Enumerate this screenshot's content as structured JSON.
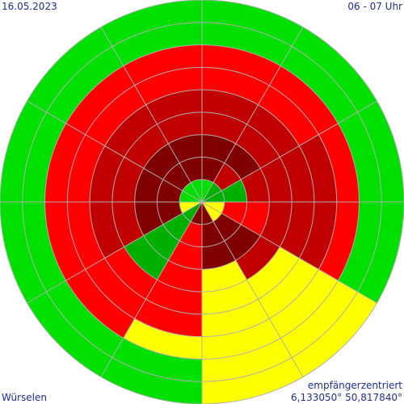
{
  "header": {
    "date": "16.05.2023",
    "time_range": "06 - 07 Uhr"
  },
  "footer": {
    "location": "Würselen",
    "projection": "empfängerzentriert",
    "coordinates": "6,133050° 50,817840°"
  },
  "colors": {
    "bright_green": "#00e000",
    "dark_green": "#00b000",
    "yellow": "#ffff00",
    "red": "#ff0000",
    "dark_red": "#c00000",
    "darkest_red": "#800000",
    "grid": "#b0b0b0"
  },
  "chart_data": {
    "type": "polar_sector_rings",
    "sectors": 12,
    "start_direction": "north",
    "rotation": "clockwise",
    "rings": 9,
    "grid": true,
    "color_keys": [
      "bright_green",
      "dark_green",
      "yellow",
      "red",
      "dark_red",
      "darkest_red"
    ],
    "sector_rings": [
      [
        "bright_green",
        "darkest_red",
        "darkest_red",
        "dark_red",
        "dark_red",
        "red",
        "red",
        "bright_green",
        "bright_green"
      ],
      [
        "dark_green",
        "dark_red",
        "darkest_red",
        "dark_red",
        "dark_red",
        "red",
        "red",
        "bright_green",
        "bright_green"
      ],
      [
        "dark_green",
        "dark_green",
        "dark_red",
        "dark_red",
        "dark_red",
        "dark_red",
        "red",
        "bright_green",
        "bright_green"
      ],
      [
        "yellow",
        "red",
        "red",
        "dark_red",
        "dark_red",
        "dark_red",
        "red",
        "bright_green",
        "bright_green"
      ],
      [
        "yellow",
        "darkest_red",
        "darkest_red",
        "dark_red",
        "yellow",
        "yellow",
        "yellow",
        "yellow",
        "yellow"
      ],
      [
        "darkest_red",
        "darkest_red",
        "darkest_red",
        "yellow",
        "yellow",
        "yellow",
        "yellow",
        "yellow",
        "yellow"
      ],
      [
        "darkest_red",
        "red",
        "red",
        "red",
        "red",
        "red",
        "yellow",
        "bright_green",
        "bright_green"
      ],
      [
        "dark_green",
        "dark_green",
        "dark_green",
        "dark_green",
        "red",
        "red",
        "red",
        "bright_green",
        "bright_green"
      ],
      [
        "yellow",
        "darkest_red",
        "darkest_red",
        "dark_red",
        "dark_red",
        "red",
        "red",
        "bright_green",
        "bright_green"
      ],
      [
        "bright_green",
        "darkest_red",
        "darkest_red",
        "dark_red",
        "dark_red",
        "red",
        "red",
        "bright_green",
        "bright_green"
      ],
      [
        "bright_green",
        "darkest_red",
        "darkest_red",
        "dark_red",
        "dark_red",
        "red",
        "red",
        "bright_green",
        "bright_green"
      ],
      [
        "bright_green",
        "darkest_red",
        "darkest_red",
        "dark_red",
        "dark_red",
        "red",
        "red",
        "bright_green",
        "bright_green"
      ]
    ]
  }
}
